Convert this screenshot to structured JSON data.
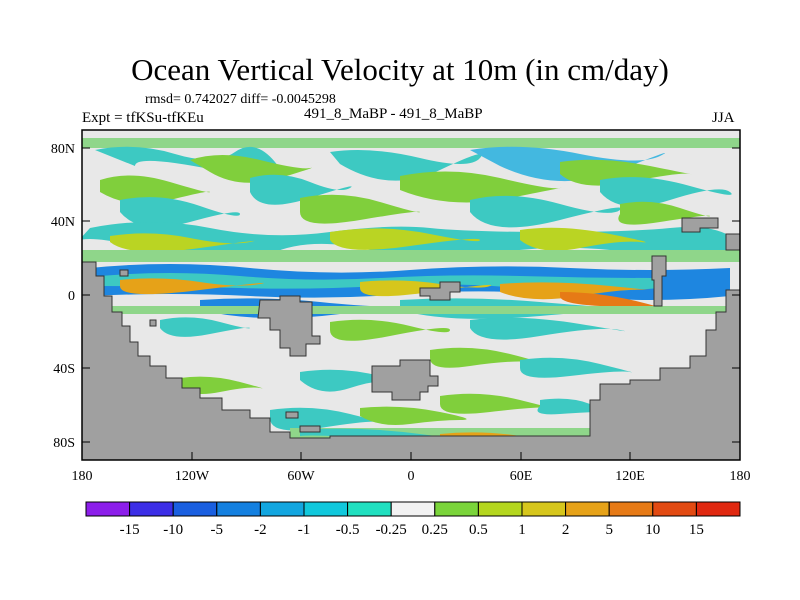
{
  "title": "Ocean Vertical Velocity at 10m (in cm/day)",
  "stats": "rmsd= 0.742027 diff= -0.0045298",
  "experiment": "Expt = tfKSu-tfKEu",
  "case_label": "491_8_MaBP - 491_8_MaBP",
  "season": "JJA",
  "map": {
    "lon_ticks": [
      "180",
      "120W",
      "60W",
      "0",
      "60E",
      "120E",
      "180"
    ],
    "lat_ticks": [
      "80N",
      "40N",
      "0",
      "40S",
      "80S"
    ],
    "land_color": "#a0a0a0",
    "neutral_color": "#e6e6e6"
  },
  "colorbar": {
    "levels": [
      "-15",
      "-10",
      "-5",
      "-2",
      "-1",
      "-0.5",
      "-0.25",
      "0.25",
      "0.5",
      "1",
      "2",
      "5",
      "10",
      "15"
    ],
    "colors": [
      "#8c1eea",
      "#3c2ee6",
      "#1a5fe0",
      "#1480e0",
      "#12a6e0",
      "#10c8dc",
      "#20e0c0",
      "#f2f2f2",
      "#7ad43a",
      "#b4d61e",
      "#d6c61c",
      "#e6a218",
      "#e67a16",
      "#e24a12",
      "#e02810"
    ]
  }
}
